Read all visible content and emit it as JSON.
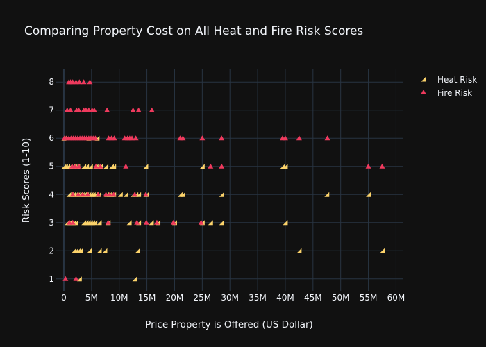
{
  "chart_data": {
    "type": "scatter",
    "title": "Comparing Property Cost on All Heat and Fire Risk Scores",
    "xlabel": "Price Property is Offered (US Dollar)",
    "ylabel": "Risk Scores (1-10)",
    "xlim": [
      -1500000,
      61200000
    ],
    "ylim": [
      0.55,
      8.45
    ],
    "x_ticks": [
      0,
      5000000,
      10000000,
      15000000,
      20000000,
      25000000,
      30000000,
      35000000,
      40000000,
      45000000,
      50000000,
      55000000,
      60000000
    ],
    "x_tick_labels": [
      "0",
      "5M",
      "10M",
      "15M",
      "20M",
      "25M",
      "30M",
      "35M",
      "40M",
      "45M",
      "50M",
      "55M",
      "60M"
    ],
    "y_ticks": [
      1,
      2,
      3,
      4,
      5,
      6,
      7,
      8
    ],
    "y_tick_labels": [
      "1",
      "2",
      "3",
      "4",
      "5",
      "6",
      "7",
      "8"
    ],
    "grid": true,
    "legend_position": "top-right",
    "series": [
      {
        "name": "Heat Risk",
        "color": "#fcd36b",
        "marker": "triangle-se",
        "points": [
          [
            2800000,
            1
          ],
          [
            12800000,
            1
          ],
          [
            1800000,
            2
          ],
          [
            2200000,
            2
          ],
          [
            2600000,
            2
          ],
          [
            3000000,
            2
          ],
          [
            4600000,
            2
          ],
          [
            6400000,
            2
          ],
          [
            7400000,
            2
          ],
          [
            13300000,
            2
          ],
          [
            42500000,
            2
          ],
          [
            57500000,
            2
          ],
          [
            600000,
            3
          ],
          [
            1000000,
            3
          ],
          [
            1400000,
            3
          ],
          [
            1800000,
            3
          ],
          [
            2200000,
            3
          ],
          [
            3600000,
            3
          ],
          [
            4000000,
            3
          ],
          [
            4400000,
            3
          ],
          [
            4800000,
            3
          ],
          [
            5200000,
            3
          ],
          [
            5600000,
            3
          ],
          [
            6400000,
            3
          ],
          [
            8000000,
            3
          ],
          [
            11800000,
            3
          ],
          [
            13500000,
            3
          ],
          [
            15800000,
            3
          ],
          [
            17000000,
            3
          ],
          [
            20000000,
            3
          ],
          [
            25000000,
            3
          ],
          [
            26500000,
            3
          ],
          [
            28500000,
            3
          ],
          [
            40000000,
            3
          ],
          [
            900000,
            4
          ],
          [
            1300000,
            4
          ],
          [
            1700000,
            4
          ],
          [
            2100000,
            4
          ],
          [
            2500000,
            4
          ],
          [
            2900000,
            4
          ],
          [
            3300000,
            4
          ],
          [
            3700000,
            4
          ],
          [
            4100000,
            4
          ],
          [
            4500000,
            4
          ],
          [
            4900000,
            4
          ],
          [
            5300000,
            4
          ],
          [
            5700000,
            4
          ],
          [
            6300000,
            4
          ],
          [
            7700000,
            4
          ],
          [
            8200000,
            4
          ],
          [
            8600000,
            4
          ],
          [
            9000000,
            4
          ],
          [
            10200000,
            4
          ],
          [
            11200000,
            4
          ],
          [
            12500000,
            4
          ],
          [
            13000000,
            4
          ],
          [
            13500000,
            4
          ],
          [
            14900000,
            4
          ],
          [
            21000000,
            4
          ],
          [
            21500000,
            4
          ],
          [
            28500000,
            4
          ],
          [
            47500000,
            4
          ],
          [
            55000000,
            4
          ],
          [
            0,
            5
          ],
          [
            300000,
            5
          ],
          [
            700000,
            5
          ],
          [
            1100000,
            5
          ],
          [
            1600000,
            5
          ],
          [
            2000000,
            5
          ],
          [
            2500000,
            5
          ],
          [
            3600000,
            5
          ],
          [
            4100000,
            5
          ],
          [
            4800000,
            5
          ],
          [
            5800000,
            5
          ],
          [
            6200000,
            5
          ],
          [
            6600000,
            5
          ],
          [
            7600000,
            5
          ],
          [
            8600000,
            5
          ],
          [
            9000000,
            5
          ],
          [
            14800000,
            5
          ],
          [
            25000000,
            5
          ],
          [
            39500000,
            5
          ],
          [
            40000000,
            5
          ],
          [
            0,
            6
          ],
          [
            4500000,
            6
          ],
          [
            6000000,
            6
          ]
        ]
      },
      {
        "name": "Fire Risk",
        "color": "#ef3a5d",
        "marker": "triangle-up",
        "points": [
          [
            300000,
            1
          ],
          [
            2200000,
            1
          ],
          [
            1000000,
            3
          ],
          [
            1600000,
            3
          ],
          [
            8000000,
            3
          ],
          [
            13200000,
            3
          ],
          [
            14900000,
            3
          ],
          [
            16800000,
            3
          ],
          [
            19800000,
            3
          ],
          [
            24800000,
            3
          ],
          [
            1600000,
            4
          ],
          [
            2600000,
            4
          ],
          [
            3400000,
            4
          ],
          [
            4300000,
            4
          ],
          [
            6200000,
            4
          ],
          [
            7600000,
            4
          ],
          [
            8300000,
            4
          ],
          [
            9000000,
            4
          ],
          [
            12800000,
            4
          ],
          [
            14800000,
            4
          ],
          [
            1500000,
            5
          ],
          [
            2100000,
            5
          ],
          [
            2700000,
            5
          ],
          [
            5800000,
            5
          ],
          [
            6600000,
            5
          ],
          [
            11200000,
            5
          ],
          [
            26500000,
            5
          ],
          [
            28500000,
            5
          ],
          [
            55000000,
            5
          ],
          [
            57500000,
            5
          ],
          [
            100000,
            6
          ],
          [
            500000,
            6
          ],
          [
            900000,
            6
          ],
          [
            1300000,
            6
          ],
          [
            1700000,
            6
          ],
          [
            2100000,
            6
          ],
          [
            2500000,
            6
          ],
          [
            2900000,
            6
          ],
          [
            3300000,
            6
          ],
          [
            3700000,
            6
          ],
          [
            4100000,
            6
          ],
          [
            4500000,
            6
          ],
          [
            4900000,
            6
          ],
          [
            5300000,
            6
          ],
          [
            5700000,
            6
          ],
          [
            8100000,
            6
          ],
          [
            8600000,
            6
          ],
          [
            9100000,
            6
          ],
          [
            11000000,
            6
          ],
          [
            11500000,
            6
          ],
          [
            11900000,
            6
          ],
          [
            12300000,
            6
          ],
          [
            13000000,
            6
          ],
          [
            21000000,
            6
          ],
          [
            21500000,
            6
          ],
          [
            25000000,
            6
          ],
          [
            28500000,
            6
          ],
          [
            39500000,
            6
          ],
          [
            40000000,
            6
          ],
          [
            42500000,
            6
          ],
          [
            47600000,
            6
          ],
          [
            600000,
            7
          ],
          [
            1200000,
            7
          ],
          [
            2300000,
            7
          ],
          [
            2700000,
            7
          ],
          [
            3600000,
            7
          ],
          [
            4000000,
            7
          ],
          [
            4500000,
            7
          ],
          [
            5100000,
            7
          ],
          [
            5500000,
            7
          ],
          [
            7800000,
            7
          ],
          [
            12500000,
            7
          ],
          [
            13500000,
            7
          ],
          [
            15900000,
            7
          ],
          [
            900000,
            8
          ],
          [
            1200000,
            8
          ],
          [
            1600000,
            8
          ],
          [
            2200000,
            8
          ],
          [
            2800000,
            8
          ],
          [
            3600000,
            8
          ],
          [
            4700000,
            8
          ]
        ]
      }
    ]
  }
}
